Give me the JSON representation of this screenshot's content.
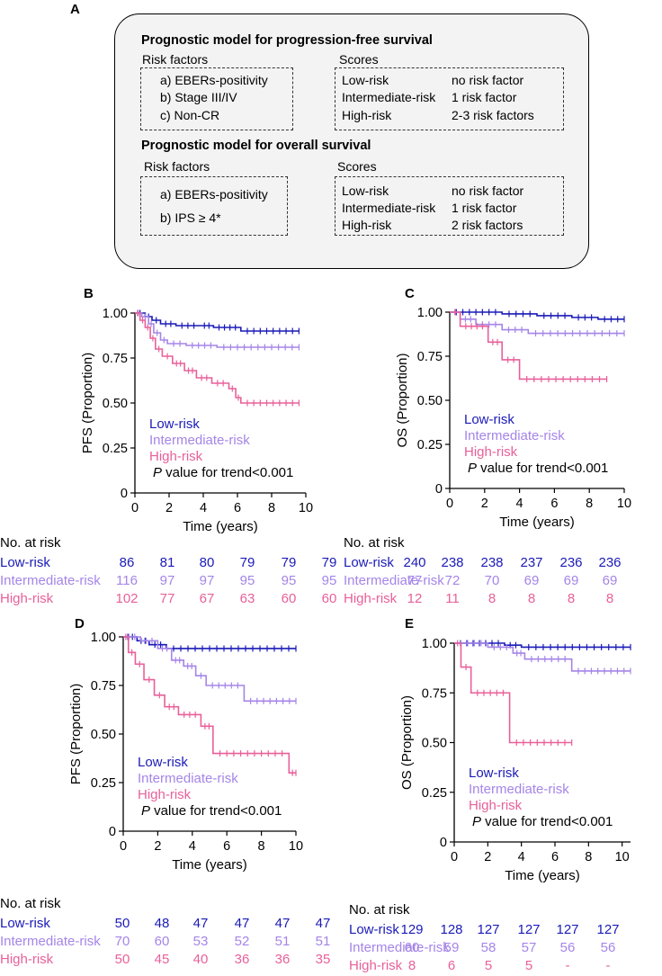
{
  "colors": {
    "low": "#1a1ab8",
    "intermediate": "#a585e8",
    "high": "#e8609a"
  },
  "panel_a": {
    "letter": "A",
    "pfs_title": "Prognostic model for progression-free survival",
    "os_title": "Prognostic model for overall survival",
    "risk_factors_label": "Risk factors",
    "scores_label": "Scores",
    "pfs_factors": [
      "a) EBERs-positivity",
      "b) Stage III/IV",
      "c) Non-CR"
    ],
    "pfs_scores": [
      {
        "group": "Low-risk",
        "value": "no risk factor"
      },
      {
        "group": "Intermediate-risk",
        "value": "1 risk factor"
      },
      {
        "group": "High-risk",
        "value": "2-3 risk factors"
      }
    ],
    "os_factors": [
      "a) EBERs-positivity",
      "b) IPS ≥ 4*"
    ],
    "os_scores": [
      {
        "group": "Low-risk",
        "value": "no risk factor"
      },
      {
        "group": "Intermediate-risk",
        "value": "1 risk factor"
      },
      {
        "group": "High-risk",
        "value": "2 risk factors"
      }
    ]
  },
  "chart_data": [
    {
      "panel": "B",
      "type": "line",
      "ylabel": "PFS (Proportion)",
      "xlabel": "Time (years)",
      "xlim": [
        0,
        10
      ],
      "ylim": [
        0,
        1
      ],
      "xticks": [
        "0",
        "2",
        "4",
        "6",
        "8",
        "10"
      ],
      "yticks": [
        "0",
        "0.25",
        "0.50",
        "0.75",
        "1.00"
      ],
      "legend": [
        "Low-risk",
        "Intermediate-risk",
        "High-risk"
      ],
      "p_italic": "P",
      "p_text": " value for trend<0.001",
      "series": [
        {
          "name": "Low-risk",
          "steps": [
            [
              0,
              1.0
            ],
            [
              0.6,
              0.98
            ],
            [
              1.0,
              0.96
            ],
            [
              1.5,
              0.94
            ],
            [
              2.4,
              0.93
            ],
            [
              3.8,
              0.93
            ],
            [
              4.6,
              0.92
            ],
            [
              6.2,
              0.9
            ],
            [
              9.6,
              0.9
            ]
          ]
        },
        {
          "name": "Intermediate-risk",
          "steps": [
            [
              0,
              1.0
            ],
            [
              0.4,
              0.98
            ],
            [
              0.8,
              0.94
            ],
            [
              1.1,
              0.89
            ],
            [
              1.5,
              0.85
            ],
            [
              1.9,
              0.83
            ],
            [
              3.0,
              0.82
            ],
            [
              4.8,
              0.81
            ],
            [
              9.6,
              0.81
            ]
          ]
        },
        {
          "name": "High-risk",
          "steps": [
            [
              0,
              1.0
            ],
            [
              0.3,
              0.96
            ],
            [
              0.6,
              0.92
            ],
            [
              0.9,
              0.86
            ],
            [
              1.2,
              0.8
            ],
            [
              1.6,
              0.76
            ],
            [
              2.2,
              0.72
            ],
            [
              2.9,
              0.68
            ],
            [
              3.6,
              0.64
            ],
            [
              4.5,
              0.61
            ],
            [
              5.5,
              0.58
            ],
            [
              5.9,
              0.53
            ],
            [
              6.2,
              0.5
            ],
            [
              9.6,
              0.5
            ]
          ]
        }
      ],
      "risk_table": {
        "header": "No. at risk",
        "rows": [
          {
            "name": "Low-risk",
            "counts": [
              "86",
              "81",
              "80",
              "79",
              "79",
              "79"
            ]
          },
          {
            "name": "Intermediate-risk",
            "counts": [
              "116",
              "97",
              "97",
              "95",
              "95",
              "95"
            ]
          },
          {
            "name": "High-risk",
            "counts": [
              "102",
              "77",
              "67",
              "63",
              "60",
              "60"
            ]
          }
        ]
      }
    },
    {
      "panel": "C",
      "type": "line",
      "ylabel": "OS (Proportion)",
      "xlabel": "Time (years)",
      "xlim": [
        0,
        10
      ],
      "ylim": [
        0,
        1
      ],
      "xticks": [
        "0",
        "2",
        "4",
        "6",
        "8",
        "10"
      ],
      "yticks": [
        "0",
        "0.25",
        "0.50",
        "0.75",
        "1.00"
      ],
      "legend": [
        "Low-risk",
        "Intermediate-risk",
        "High-risk"
      ],
      "p_italic": "P",
      "p_text": " value for trend<0.001",
      "series": [
        {
          "name": "Low-risk",
          "steps": [
            [
              0,
              1.0
            ],
            [
              3.0,
              0.99
            ],
            [
              5.0,
              0.98
            ],
            [
              7.0,
              0.97
            ],
            [
              8.5,
              0.96
            ],
            [
              10.0,
              0.96
            ]
          ]
        },
        {
          "name": "Intermediate-risk",
          "steps": [
            [
              0,
              1.0
            ],
            [
              0.6,
              0.96
            ],
            [
              1.5,
              0.93
            ],
            [
              3.0,
              0.9
            ],
            [
              4.5,
              0.88
            ],
            [
              10.0,
              0.88
            ]
          ]
        },
        {
          "name": "High-risk",
          "steps": [
            [
              0,
              1.0
            ],
            [
              0.6,
              0.92
            ],
            [
              2.2,
              0.83
            ],
            [
              3.0,
              0.73
            ],
            [
              4.0,
              0.62
            ],
            [
              9.0,
              0.62
            ]
          ]
        }
      ],
      "risk_table": {
        "header": "No. at risk",
        "rows": [
          {
            "name": "Low-risk",
            "counts": [
              "240",
              "238",
              "238",
              "237",
              "236",
              "236"
            ]
          },
          {
            "name": "Intermediate-risk",
            "counts": [
              "77",
              "72",
              "70",
              "69",
              "69",
              "69"
            ]
          },
          {
            "name": "High-risk",
            "counts": [
              "12",
              "11",
              "8",
              "8",
              "8",
              "8"
            ]
          }
        ]
      }
    },
    {
      "panel": "D",
      "type": "line",
      "ylabel": "PFS (Proportion)",
      "xlabel": "Time (years)",
      "xlim": [
        0,
        10
      ],
      "ylim": [
        0,
        1
      ],
      "xticks": [
        "0",
        "2",
        "4",
        "6",
        "8",
        "10"
      ],
      "yticks": [
        "0",
        "0.25",
        "0.50",
        "0.75",
        "1.00"
      ],
      "legend": [
        "Low-risk",
        "Intermediate-risk",
        "High-risk"
      ],
      "p_italic": "P",
      "p_text": " value for trend<0.001",
      "series": [
        {
          "name": "Low-risk",
          "steps": [
            [
              0,
              1.0
            ],
            [
              0.8,
              0.98
            ],
            [
              1.5,
              0.96
            ],
            [
              2.5,
              0.94
            ],
            [
              10.0,
              0.94
            ]
          ]
        },
        {
          "name": "Intermediate-risk",
          "steps": [
            [
              0,
              1.0
            ],
            [
              1.0,
              0.98
            ],
            [
              2.0,
              0.94
            ],
            [
              2.8,
              0.88
            ],
            [
              3.5,
              0.85
            ],
            [
              4.2,
              0.8
            ],
            [
              4.8,
              0.75
            ],
            [
              7.0,
              0.67
            ],
            [
              10.0,
              0.67
            ]
          ]
        },
        {
          "name": "High-risk",
          "steps": [
            [
              0,
              1.0
            ],
            [
              0.3,
              0.92
            ],
            [
              0.7,
              0.86
            ],
            [
              1.2,
              0.78
            ],
            [
              1.8,
              0.7
            ],
            [
              2.4,
              0.64
            ],
            [
              3.2,
              0.6
            ],
            [
              4.5,
              0.54
            ],
            [
              5.2,
              0.4
            ],
            [
              9.6,
              0.3
            ],
            [
              10.0,
              0.3
            ]
          ]
        }
      ],
      "risk_table": {
        "header": "No. at risk",
        "rows": [
          {
            "name": "Low-risk",
            "counts": [
              "50",
              "48",
              "47",
              "47",
              "47",
              "47"
            ]
          },
          {
            "name": "Intermediate-risk",
            "counts": [
              "70",
              "60",
              "53",
              "52",
              "51",
              "51"
            ]
          },
          {
            "name": "High-risk",
            "counts": [
              "50",
              "45",
              "40",
              "36",
              "36",
              "35"
            ]
          }
        ]
      }
    },
    {
      "panel": "E",
      "type": "line",
      "ylabel": "OS (Proportion)",
      "xlabel": "Time (years)",
      "xlim": [
        0,
        10.5
      ],
      "ylim": [
        0,
        1
      ],
      "xticks": [
        "0",
        "2",
        "4",
        "6",
        "8",
        "10"
      ],
      "yticks": [
        "0",
        "0.25",
        "0.50",
        "0.75",
        "1.00"
      ],
      "legend": [
        "Low-risk",
        "Intermediate-risk",
        "High-risk"
      ],
      "p_italic": "P",
      "p_text": " value for trend<0.001",
      "series": [
        {
          "name": "Low-risk",
          "steps": [
            [
              0,
              1.0
            ],
            [
              3.0,
              0.99
            ],
            [
              4.0,
              0.98
            ],
            [
              10.5,
              0.98
            ]
          ]
        },
        {
          "name": "Intermediate-risk",
          "steps": [
            [
              0,
              1.0
            ],
            [
              2.0,
              0.98
            ],
            [
              3.5,
              0.95
            ],
            [
              4.2,
              0.92
            ],
            [
              7.0,
              0.86
            ],
            [
              10.5,
              0.86
            ]
          ]
        },
        {
          "name": "High-risk",
          "steps": [
            [
              0,
              1.0
            ],
            [
              0.4,
              0.88
            ],
            [
              1.0,
              0.75
            ],
            [
              3.3,
              0.5
            ],
            [
              7.0,
              0.5
            ]
          ]
        }
      ],
      "risk_table": {
        "header": "No. at risk",
        "rows": [
          {
            "name": "Low-risk",
            "counts": [
              "129",
              "128",
              "127",
              "127",
              "127",
              "127"
            ]
          },
          {
            "name": "Intermediate-risk",
            "counts": [
              "60",
              "59",
              "58",
              "57",
              "56",
              "56"
            ]
          },
          {
            "name": "High-risk",
            "counts": [
              "8",
              "6",
              "5",
              "5",
              "-",
              "-"
            ]
          }
        ]
      }
    }
  ]
}
